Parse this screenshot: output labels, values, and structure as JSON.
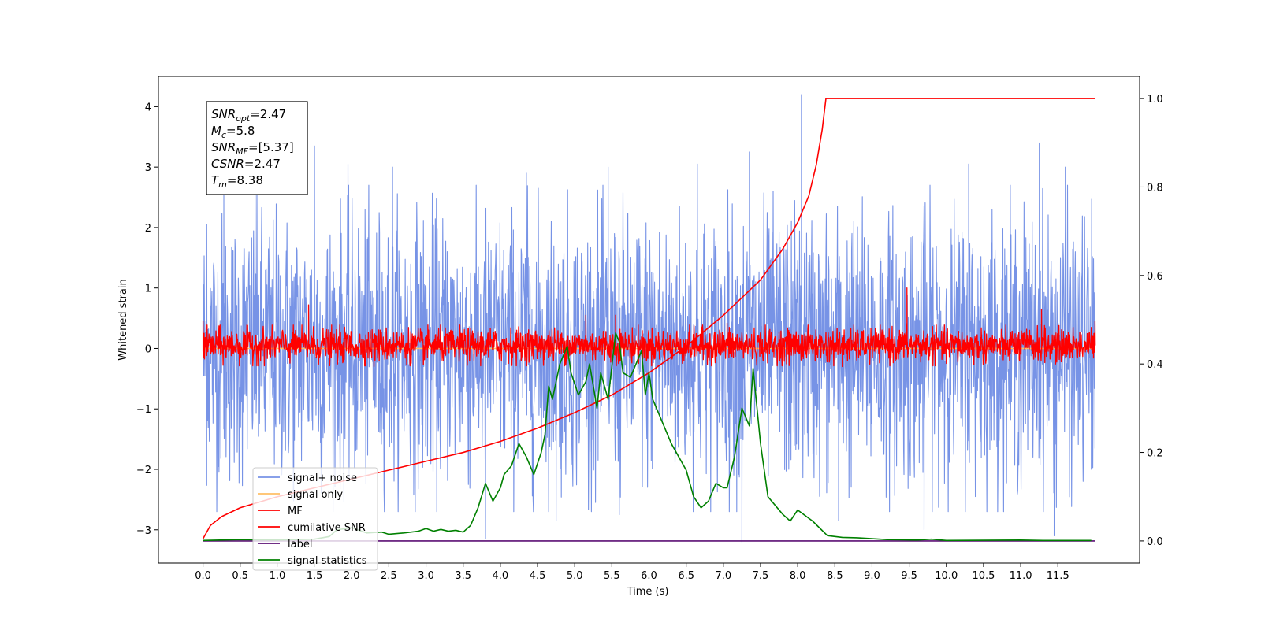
{
  "chart_data": {
    "type": "line",
    "xlabel": "Time (s)",
    "ylabel": "Whitened strain",
    "xlim": [
      -0.6,
      12.6
    ],
    "ylim": [
      -3.55,
      4.5
    ],
    "y2lim": [
      -0.05,
      1.05
    ],
    "x_ticks": [
      0.0,
      0.5,
      1.0,
      1.5,
      2.0,
      2.5,
      3.0,
      3.5,
      4.0,
      4.5,
      5.0,
      5.5,
      6.0,
      6.5,
      7.0,
      7.5,
      8.0,
      8.5,
      9.0,
      9.5,
      10.0,
      10.5,
      11.0,
      11.5
    ],
    "x_tick_labels": [
      "0.0",
      "0.5",
      "1.0",
      "1.5",
      "2.0",
      "2.5",
      "3.0",
      "3.5",
      "4.0",
      "4.5",
      "5.0",
      "5.5",
      "6.0",
      "6.5",
      "7.0",
      "7.5",
      "8.0",
      "8.5",
      "9.0",
      "9.5",
      "10.0",
      "10.5",
      "11.0",
      "11.5"
    ],
    "y_ticks": [
      -3,
      -2,
      -1,
      0,
      1,
      2,
      3,
      4
    ],
    "y_tick_labels": [
      "−3",
      "−2",
      "−1",
      "0",
      "1",
      "2",
      "3",
      "4"
    ],
    "y2_ticks": [
      0.0,
      0.2,
      0.4,
      0.6,
      0.8,
      1.0
    ],
    "y2_tick_labels": [
      "0.0",
      "0.2",
      "0.4",
      "0.6",
      "0.8",
      "1.0"
    ],
    "grid": false,
    "legend_placement": "lower-left",
    "annotation_box": {
      "placement": "upper-left",
      "lines": [
        {
          "base": "SNR",
          "sub": "opt",
          "value": "=2.47"
        },
        {
          "base": "M",
          "sub": "c",
          "value": "=5.8"
        },
        {
          "base": "SNR",
          "sub": "MF",
          "value": "=[5.37]"
        },
        {
          "base": "CSNR",
          "sub": "",
          "value": "=2.47"
        },
        {
          "base": "T",
          "sub": "m",
          "value": "=8.38"
        }
      ]
    },
    "series": [
      {
        "name": "signal+ noise",
        "axis": "left",
        "color": "#7793e6",
        "kind": "noise",
        "envelope": [
          -2.0,
          2.0
        ],
        "peaks": [
          [
            0.05,
            2.05
          ],
          [
            0.28,
            2.6
          ],
          [
            0.7,
            2.8
          ],
          [
            1.5,
            3.35
          ],
          [
            1.95,
            3.05
          ],
          [
            2.55,
            3.0
          ],
          [
            4.35,
            2.9
          ],
          [
            5.45,
            3.0
          ],
          [
            6.65,
            3.05
          ],
          [
            7.35,
            3.25
          ],
          [
            8.05,
            4.2
          ],
          [
            10.3,
            3.05
          ],
          [
            11.25,
            3.4
          ],
          [
            11.6,
            3.0
          ],
          [
            1.2,
            -2.5
          ],
          [
            3.8,
            -3.15
          ],
          [
            4.75,
            -2.85
          ],
          [
            5.6,
            -2.75
          ],
          [
            7.25,
            -3.2
          ],
          [
            8.55,
            -2.85
          ],
          [
            9.7,
            -3.0
          ],
          [
            11.45,
            -3.1
          ],
          [
            11.95,
            -2.0
          ]
        ],
        "x_start": 0.0,
        "x_end": 12.0
      },
      {
        "name": "signal only",
        "axis": "left",
        "color": "#ffbf66",
        "kind": "flat",
        "values": [
          [
            0.0,
            0.0
          ],
          [
            12.0,
            0.0
          ]
        ]
      },
      {
        "name": "MF",
        "axis": "left",
        "color": "#ff0000",
        "kind": "noise",
        "envelope": [
          -0.2,
          0.3
        ],
        "peaks": [
          [
            1.42,
            0.72
          ],
          [
            5.15,
            0.55
          ],
          [
            5.55,
            0.55
          ],
          [
            7.05,
            0.42
          ],
          [
            9.47,
            1.0
          ],
          [
            11.28,
            0.65
          ],
          [
            0.0,
            0.45
          ],
          [
            12.0,
            0.45
          ],
          [
            2.3,
            -0.3
          ],
          [
            8.6,
            -0.3
          ]
        ],
        "x_start": 0.0,
        "x_end": 12.0
      },
      {
        "name": "cumilative SNR",
        "axis": "right",
        "color": "#ff0000",
        "kind": "line",
        "values": [
          [
            0.0,
            0.005
          ],
          [
            0.1,
            0.035
          ],
          [
            0.25,
            0.055
          ],
          [
            0.5,
            0.075
          ],
          [
            1.0,
            0.1
          ],
          [
            1.5,
            0.12
          ],
          [
            2.0,
            0.14
          ],
          [
            2.5,
            0.16
          ],
          [
            3.0,
            0.18
          ],
          [
            3.5,
            0.2
          ],
          [
            4.0,
            0.225
          ],
          [
            4.5,
            0.255
          ],
          [
            5.0,
            0.29
          ],
          [
            5.5,
            0.33
          ],
          [
            6.0,
            0.38
          ],
          [
            6.5,
            0.44
          ],
          [
            7.0,
            0.51
          ],
          [
            7.5,
            0.59
          ],
          [
            7.8,
            0.66
          ],
          [
            8.0,
            0.72
          ],
          [
            8.15,
            0.78
          ],
          [
            8.25,
            0.85
          ],
          [
            8.33,
            0.93
          ],
          [
            8.38,
            1.0
          ],
          [
            12.0,
            1.0
          ]
        ]
      },
      {
        "name": "label",
        "axis": "right",
        "color": "#5b0f74",
        "kind": "line",
        "values": [
          [
            0.0,
            0.0
          ],
          [
            12.0,
            0.0
          ]
        ]
      },
      {
        "name": "signal statistics",
        "axis": "right",
        "color": "#008000",
        "kind": "line",
        "values": [
          [
            0.0,
            0.001
          ],
          [
            0.5,
            0.003
          ],
          [
            1.0,
            0.002
          ],
          [
            1.5,
            0.004
          ],
          [
            1.7,
            0.01
          ],
          [
            1.8,
            0.025
          ],
          [
            2.0,
            0.03
          ],
          [
            2.2,
            0.018
          ],
          [
            2.4,
            0.02
          ],
          [
            2.5,
            0.015
          ],
          [
            2.7,
            0.018
          ],
          [
            2.9,
            0.022
          ],
          [
            3.0,
            0.028
          ],
          [
            3.1,
            0.022
          ],
          [
            3.2,
            0.026
          ],
          [
            3.3,
            0.022
          ],
          [
            3.4,
            0.024
          ],
          [
            3.5,
            0.02
          ],
          [
            3.6,
            0.035
          ],
          [
            3.7,
            0.075
          ],
          [
            3.8,
            0.13
          ],
          [
            3.9,
            0.09
          ],
          [
            4.0,
            0.12
          ],
          [
            4.05,
            0.15
          ],
          [
            4.15,
            0.17
          ],
          [
            4.25,
            0.22
          ],
          [
            4.35,
            0.19
          ],
          [
            4.45,
            0.15
          ],
          [
            4.55,
            0.2
          ],
          [
            4.6,
            0.24
          ],
          [
            4.65,
            0.35
          ],
          [
            4.7,
            0.32
          ],
          [
            4.8,
            0.4
          ],
          [
            4.9,
            0.44
          ],
          [
            4.95,
            0.38
          ],
          [
            5.05,
            0.33
          ],
          [
            5.15,
            0.36
          ],
          [
            5.2,
            0.4
          ],
          [
            5.3,
            0.3
          ],
          [
            5.35,
            0.38
          ],
          [
            5.45,
            0.32
          ],
          [
            5.55,
            0.47
          ],
          [
            5.6,
            0.45
          ],
          [
            5.65,
            0.38
          ],
          [
            5.75,
            0.37
          ],
          [
            5.85,
            0.41
          ],
          [
            5.9,
            0.43
          ],
          [
            5.95,
            0.33
          ],
          [
            6.0,
            0.38
          ],
          [
            6.05,
            0.32
          ],
          [
            6.15,
            0.28
          ],
          [
            6.3,
            0.22
          ],
          [
            6.5,
            0.16
          ],
          [
            6.6,
            0.1
          ],
          [
            6.7,
            0.075
          ],
          [
            6.8,
            0.09
          ],
          [
            6.9,
            0.13
          ],
          [
            7.0,
            0.12
          ],
          [
            7.05,
            0.12
          ],
          [
            7.15,
            0.19
          ],
          [
            7.25,
            0.3
          ],
          [
            7.35,
            0.26
          ],
          [
            7.4,
            0.39
          ],
          [
            7.5,
            0.22
          ],
          [
            7.6,
            0.1
          ],
          [
            7.8,
            0.06
          ],
          [
            7.9,
            0.045
          ],
          [
            8.0,
            0.07
          ],
          [
            8.2,
            0.045
          ],
          [
            8.4,
            0.012
          ],
          [
            8.6,
            0.008
          ],
          [
            8.8,
            0.007
          ],
          [
            9.2,
            0.003
          ],
          [
            9.6,
            0.002
          ],
          [
            9.8,
            0.004
          ],
          [
            10.0,
            0.001
          ],
          [
            11.0,
            0.002
          ],
          [
            11.3,
            0.001
          ],
          [
            11.95,
            0.001
          ]
        ]
      }
    ],
    "legend": [
      "signal+ noise",
      "signal only",
      "MF",
      "cumilative SNR",
      "label",
      "signal statistics"
    ]
  }
}
